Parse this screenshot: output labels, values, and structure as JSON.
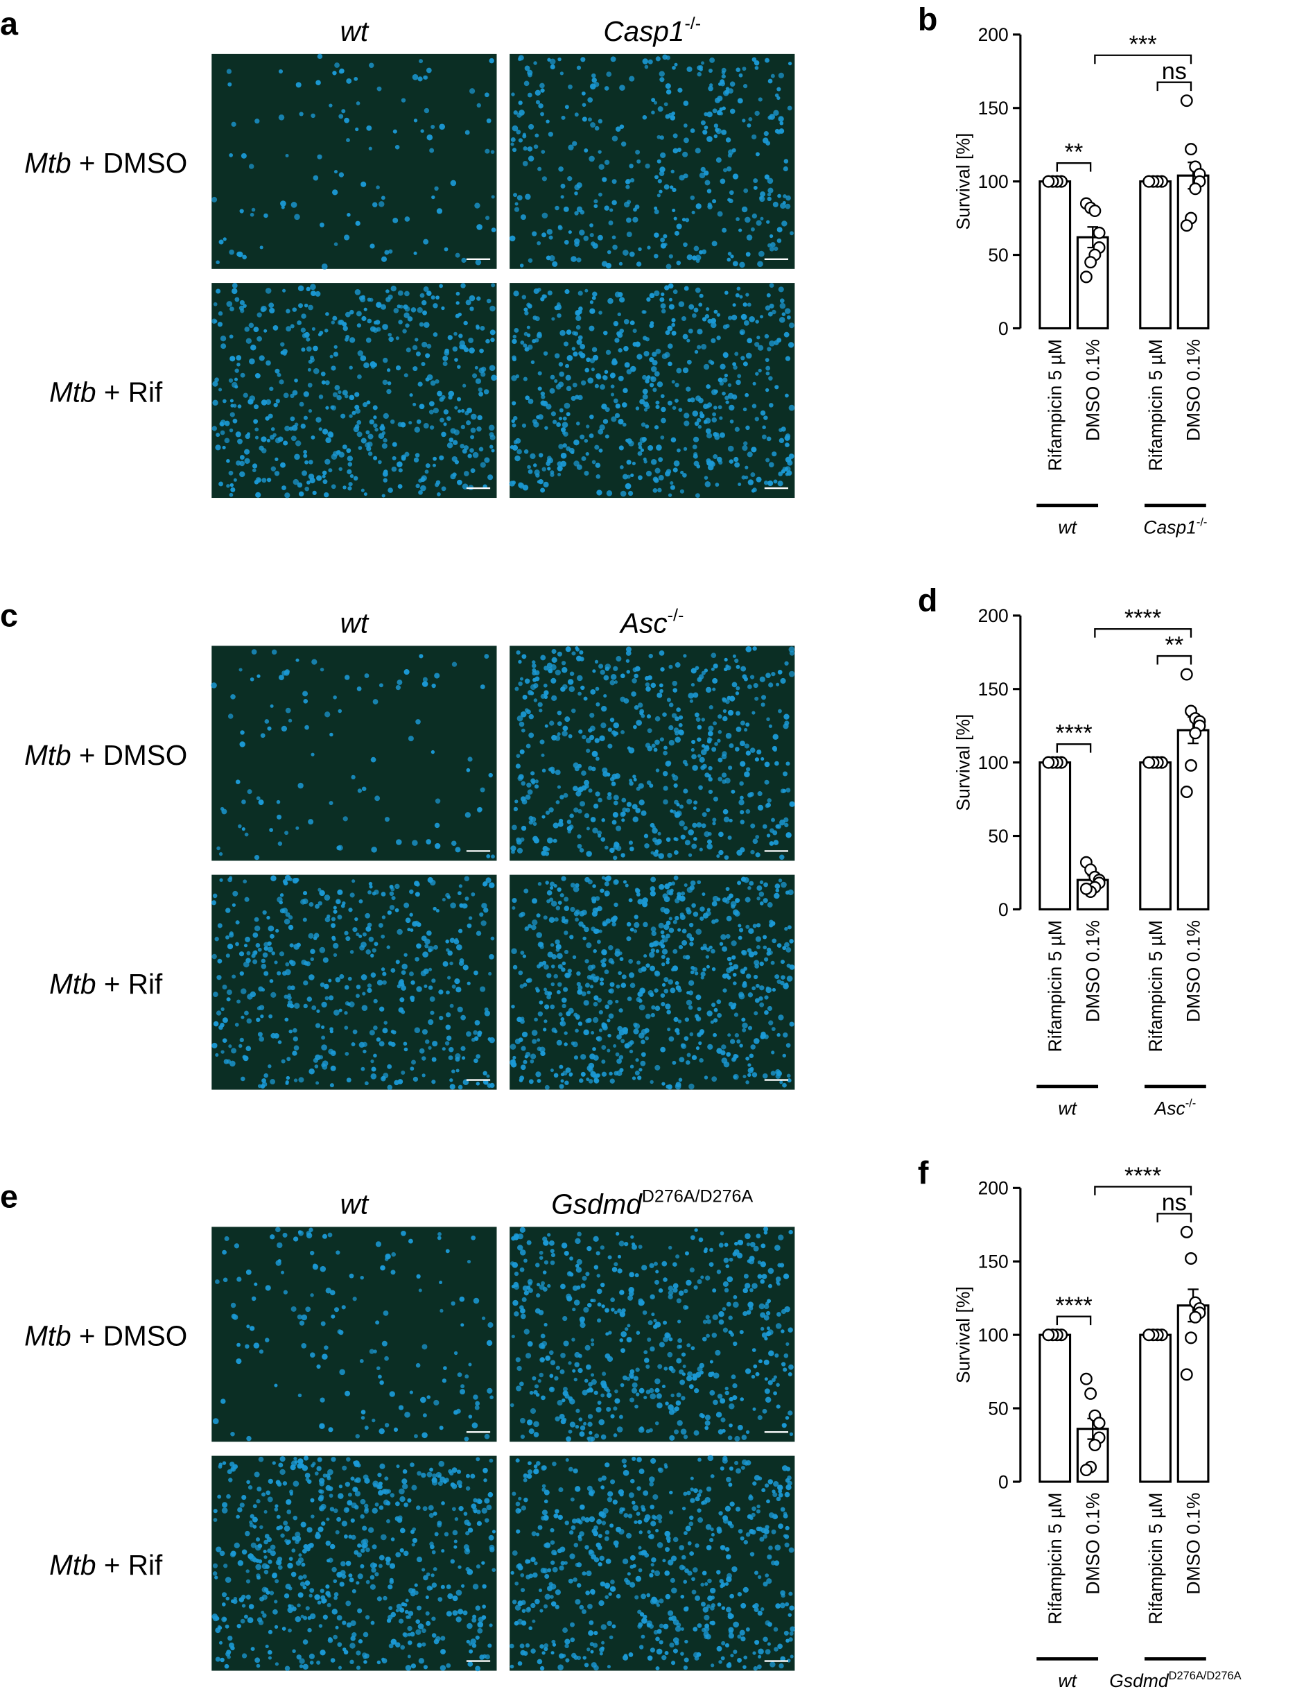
{
  "image_panels": [
    {
      "label": "a",
      "columns": [
        {
          "name": "wt"
        },
        {
          "name": "Casp1",
          "sup": "-/-"
        }
      ],
      "rows": [
        {
          "italic": "Mtb",
          "text": "+ DMSO"
        },
        {
          "italic": "Mtb",
          "text": "+ Rif"
        }
      ]
    },
    {
      "label": "c",
      "columns": [
        {
          "name": "wt"
        },
        {
          "name": "Asc",
          "sup": "-/-"
        }
      ],
      "rows": [
        {
          "italic": "Mtb",
          "text": "+ DMSO"
        },
        {
          "italic": "Mtb",
          "text": "+ Rif"
        }
      ]
    },
    {
      "label": "e",
      "columns": [
        {
          "name": "wt"
        },
        {
          "name": "Gsdmd",
          "sup": "D276A/D276A"
        }
      ],
      "rows": [
        {
          "italic": "Mtb",
          "text": "+ DMSO"
        },
        {
          "italic": "Mtb",
          "text": "+ Rif"
        }
      ]
    }
  ],
  "chart_data": [
    {
      "type": "bar",
      "label": "b",
      "ylabel": "Survival [%]",
      "categories": [
        "Rifampicin 5 µM",
        "DMSO 0.1%",
        "Rifampicin 5 µM",
        "DMSO 0.1%"
      ],
      "values": [
        100,
        62,
        100,
        104
      ],
      "errors": [
        0,
        7,
        0,
        9
      ],
      "points": [
        [
          100,
          100,
          100,
          100,
          100,
          100,
          100,
          100
        ],
        [
          85,
          82,
          80,
          65,
          55,
          50,
          45,
          35
        ],
        [
          100,
          100,
          100,
          100,
          100,
          100,
          100,
          100
        ],
        [
          155,
          122,
          110,
          105,
          100,
          95,
          75,
          70
        ]
      ],
      "groups": [
        {
          "name": "wt"
        },
        {
          "name": "Casp1",
          "sup": "-/-"
        }
      ],
      "significance": [
        "**",
        "ns",
        "***"
      ],
      "color": "#ffffff",
      "ylim": [
        0,
        200
      ],
      "yticks": [
        0,
        50,
        100,
        150,
        200
      ]
    },
    {
      "type": "bar",
      "label": "d",
      "ylabel": "Survival [%]",
      "categories": [
        "Rifampicin 5 µM",
        "DMSO 0.1%",
        "Rifampicin 5 µM",
        "DMSO 0.1%"
      ],
      "values": [
        100,
        20,
        100,
        122
      ],
      "errors": [
        0,
        3,
        0,
        9
      ],
      "points": [
        [
          100,
          100,
          100,
          100,
          100,
          100,
          100,
          100
        ],
        [
          32,
          27,
          22,
          20,
          18,
          15,
          12,
          14
        ],
        [
          100,
          100,
          100,
          100,
          100,
          100,
          100,
          100
        ],
        [
          160,
          135,
          130,
          128,
          125,
          120,
          98,
          80
        ]
      ],
      "groups": [
        {
          "name": "wt"
        },
        {
          "name": "Asc",
          "sup": "-/-"
        }
      ],
      "significance": [
        "****",
        "**",
        "****"
      ],
      "color": "#ffffff",
      "ylim": [
        0,
        200
      ],
      "yticks": [
        0,
        50,
        100,
        150,
        200
      ]
    },
    {
      "type": "bar",
      "label": "f",
      "ylabel": "Survival [%]",
      "categories": [
        "Rifampicin 5 µM",
        "DMSO 0.1%",
        "Rifampicin 5 µM",
        "DMSO 0.1%"
      ],
      "values": [
        100,
        36,
        100,
        120
      ],
      "errors": [
        0,
        7,
        0,
        11
      ],
      "points": [
        [
          100,
          100,
          100,
          100,
          100,
          100,
          100,
          100
        ],
        [
          70,
          60,
          45,
          40,
          30,
          25,
          10,
          8
        ],
        [
          100,
          100,
          100,
          100,
          100,
          100,
          100,
          100
        ],
        [
          170,
          152,
          122,
          118,
          115,
          112,
          98,
          73
        ]
      ],
      "groups": [
        {
          "name": "wt"
        },
        {
          "name": "Gsdmd",
          "sup": "D276A/D276A"
        }
      ],
      "significance": [
        "****",
        "ns",
        "****"
      ],
      "color": "#ffffff",
      "ylim": [
        0,
        200
      ],
      "yticks": [
        0,
        50,
        100,
        150,
        200
      ]
    }
  ]
}
